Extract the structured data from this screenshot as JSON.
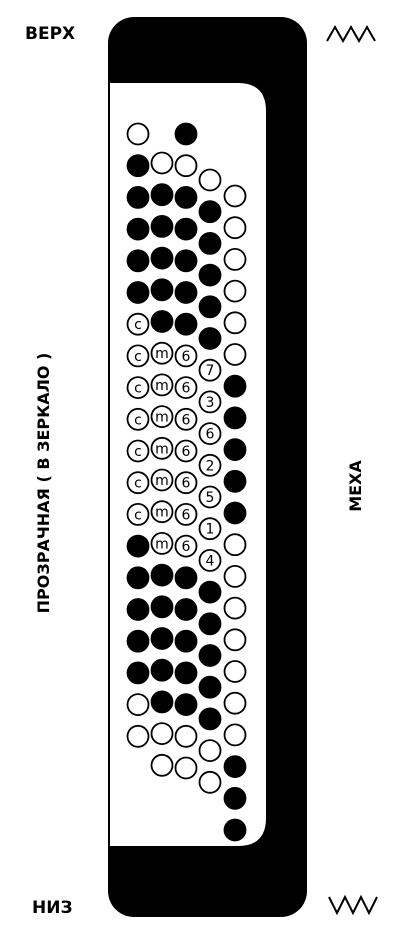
{
  "labels": {
    "top": "ВЕРХ",
    "bottom": "НИЗ",
    "left": "ПРОЗРАЧНАЯ ( В ЗЕРКАЛО )",
    "right": "МЕХА"
  },
  "colors": {
    "ink": "#000000",
    "paper": "#ffffff"
  },
  "icons": {
    "top_right": "zigzag-up-icon",
    "bottom_right": "zigzag-down-icon"
  },
  "columns": [
    [
      "o",
      "f",
      "f",
      "f",
      "f",
      "f",
      "c",
      "c",
      "c",
      "c",
      "c",
      "c",
      "c",
      "f",
      "f",
      "f",
      "f",
      "f",
      "o",
      "o"
    ],
    [
      "o",
      "f",
      "f",
      "f",
      "f",
      "f",
      "m",
      "m",
      "m",
      "m",
      "m",
      "m",
      "m",
      "f",
      "f",
      "f",
      "f",
      "f",
      "o",
      "o"
    ],
    [
      "f",
      "o",
      "f",
      "f",
      "f",
      "f",
      "f",
      "6",
      "6",
      "6",
      "6",
      "6",
      "6",
      "6",
      "f",
      "f",
      "f",
      "f",
      "f",
      "o",
      "o"
    ],
    [
      "o",
      "f",
      "f",
      "f",
      "f",
      "f",
      "7",
      "3",
      "6",
      "2",
      "5",
      "1",
      "4",
      "f",
      "f",
      "f",
      "f",
      "f",
      "o",
      "o"
    ],
    [
      "o",
      "o",
      "o",
      "o",
      "o",
      "o",
      "f",
      "f",
      "f",
      "f",
      "f",
      "o",
      "o",
      "o",
      "o",
      "o",
      "o",
      "o",
      "f",
      "f",
      "f"
    ]
  ]
}
